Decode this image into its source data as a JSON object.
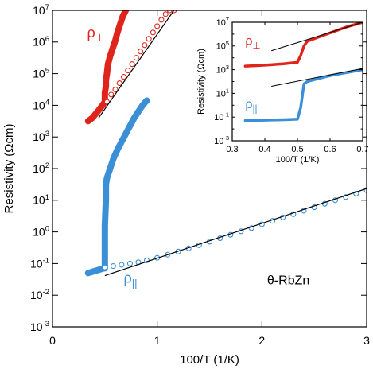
{
  "chart_data": [
    {
      "id": "main",
      "type": "scatter",
      "xlabel": "100/T (1/K)",
      "ylabel": "Resistivity (Ωcm)",
      "xlim": [
        0,
        3
      ],
      "ylim": [
        -3,
        7
      ],
      "y_scale": "log10",
      "x_ticks": [
        "0",
        "1",
        "2",
        "3"
      ],
      "x_tick_values": [
        0,
        1,
        2,
        3
      ],
      "y_ticks": [
        {
          "base": "10",
          "exp": "-3"
        },
        {
          "base": "10",
          "exp": "-2"
        },
        {
          "base": "10",
          "exp": "-1"
        },
        {
          "base": "10",
          "exp": "0"
        },
        {
          "base": "10",
          "exp": "1"
        },
        {
          "base": "10",
          "exp": "2"
        },
        {
          "base": "10",
          "exp": "3"
        },
        {
          "base": "10",
          "exp": "4"
        },
        {
          "base": "10",
          "exp": "5"
        },
        {
          "base": "10",
          "exp": "6"
        },
        {
          "base": "10",
          "exp": "7"
        }
      ],
      "y_tick_values": [
        -3,
        -2,
        -1,
        0,
        1,
        2,
        3,
        4,
        5,
        6,
        7
      ],
      "annotations": {
        "rho_perp": "ρ⊥",
        "rho_par": "ρ||",
        "sample": "θ-RbZn"
      },
      "colors": {
        "rho_perp": "#e0241b",
        "rho_par": "#3b8fd6",
        "fit": "#000000"
      },
      "series": [
        {
          "key": "rho_perp_heating",
          "color": "#e0241b",
          "marker": "filled",
          "x": [
            0.34,
            0.36,
            0.38,
            0.4,
            0.42,
            0.44,
            0.46,
            0.48,
            0.49,
            0.5,
            0.5,
            0.5,
            0.51,
            0.51,
            0.52,
            0.53,
            0.55,
            0.57,
            0.6,
            0.62,
            0.65,
            0.67,
            0.7
          ],
          "y": [
            3.5,
            3.55,
            3.6,
            3.68,
            3.76,
            3.84,
            3.93,
            4.01,
            4.06,
            4.1,
            4.25,
            4.4,
            4.6,
            4.8,
            5.0,
            5.3,
            5.55,
            5.75,
            6.05,
            6.3,
            6.6,
            6.8,
            7.0
          ]
        },
        {
          "key": "rho_perp_cooling",
          "color": "#e0241b",
          "marker": "open",
          "x": [
            0.52,
            0.56,
            0.6,
            0.64,
            0.68,
            0.72,
            0.76,
            0.8,
            0.84,
            0.88,
            0.92,
            0.96,
            1.0,
            1.04,
            1.08,
            1.12,
            1.16
          ],
          "y": [
            4.11,
            4.34,
            4.5,
            4.7,
            4.9,
            5.1,
            5.3,
            5.5,
            5.7,
            5.9,
            6.1,
            6.3,
            6.5,
            6.7,
            6.88,
            7.0,
            7.0
          ]
        },
        {
          "key": "rho_par_heating",
          "color": "#3b8fd6",
          "marker": "filled",
          "x": [
            0.34,
            0.36,
            0.38,
            0.4,
            0.42,
            0.44,
            0.46,
            0.48,
            0.49,
            0.5,
            0.5,
            0.5,
            0.51,
            0.51,
            0.52,
            0.55,
            0.58,
            0.62,
            0.66,
            0.7,
            0.74,
            0.78,
            0.82,
            0.86,
            0.9
          ],
          "y": [
            -1.3,
            -1.28,
            -1.26,
            -1.24,
            -1.22,
            -1.2,
            -1.18,
            -1.16,
            -1.15,
            -1.15,
            -0.6,
            0.2,
            1.0,
            1.5,
            1.7,
            2.0,
            2.3,
            2.6,
            2.85,
            3.1,
            3.35,
            3.6,
            3.8,
            4.0,
            4.15
          ]
        },
        {
          "key": "rho_par_cooling",
          "color": "#3b8fd6",
          "marker": "open",
          "x": [
            0.5,
            0.58,
            0.66,
            0.74,
            0.82,
            0.9,
            1.0,
            1.1,
            1.2,
            1.3,
            1.4,
            1.5,
            1.6,
            1.7,
            1.8,
            1.9,
            2.0,
            2.1,
            2.2,
            2.3,
            2.4,
            2.5,
            2.6,
            2.7,
            2.8,
            2.9,
            3.0
          ],
          "y": [
            -1.12,
            -1.08,
            -1.04,
            -1.0,
            -0.96,
            -0.9,
            -0.82,
            -0.72,
            -0.62,
            -0.52,
            -0.42,
            -0.31,
            -0.2,
            -0.09,
            0.02,
            0.12,
            0.24,
            0.35,
            0.46,
            0.56,
            0.67,
            0.78,
            0.89,
            1.0,
            1.1,
            1.21,
            1.32
          ]
        }
      ],
      "fits": [
        {
          "key": "fit_perp",
          "x": [
            0.44,
            1.16
          ],
          "y": [
            3.6,
            7.0
          ]
        },
        {
          "key": "fit_par",
          "x": [
            0.5,
            3.0
          ],
          "y": [
            -1.38,
            1.37
          ]
        }
      ]
    },
    {
      "id": "inset",
      "type": "line",
      "xlabel": "100/T (1/K)",
      "ylabel": "Resistivity (Ωcm)",
      "xlim": [
        0.3,
        0.7
      ],
      "ylim": [
        -3,
        7
      ],
      "y_scale": "log10",
      "x_ticks": [
        "0.3",
        "0.4",
        "0.5",
        "0.6",
        "0.7"
      ],
      "x_tick_values": [
        0.3,
        0.4,
        0.5,
        0.6,
        0.7
      ],
      "y_ticks": [
        {
          "base": "10",
          "exp": "-3"
        },
        {
          "base": "10",
          "exp": "-1"
        },
        {
          "base": "10",
          "exp": "1"
        },
        {
          "base": "10",
          "exp": "3"
        },
        {
          "base": "10",
          "exp": "5"
        },
        {
          "base": "10",
          "exp": "7"
        }
      ],
      "y_tick_values": [
        -3,
        -1,
        1,
        3,
        5,
        7
      ],
      "annotations": {
        "rho_perp": "ρ⊥",
        "rho_par": "ρ||"
      },
      "series": [
        {
          "key": "inset_perp",
          "color": "#e0241b",
          "x": [
            0.34,
            0.38,
            0.42,
            0.46,
            0.5,
            0.51,
            0.52,
            0.53,
            0.55,
            0.6,
            0.65,
            0.7
          ],
          "y": [
            3.3,
            3.35,
            3.42,
            3.5,
            3.62,
            4.2,
            5.0,
            5.4,
            5.6,
            6.1,
            6.6,
            7.0
          ]
        },
        {
          "key": "inset_par",
          "color": "#3b8fd6",
          "x": [
            0.34,
            0.38,
            0.42,
            0.46,
            0.5,
            0.51,
            0.52,
            0.53,
            0.55,
            0.6,
            0.65,
            0.7
          ],
          "y": [
            -1.3,
            -1.28,
            -1.25,
            -1.22,
            -1.18,
            -0.2,
            1.8,
            2.0,
            2.15,
            2.5,
            2.75,
            3.0
          ]
        }
      ],
      "fits": [
        {
          "key": "inset_fit_perp",
          "x": [
            0.42,
            0.7
          ],
          "y": [
            4.6,
            7.0
          ]
        },
        {
          "key": "inset_fit_par",
          "x": [
            0.42,
            0.7
          ],
          "y": [
            1.6,
            3.1
          ]
        }
      ]
    }
  ]
}
